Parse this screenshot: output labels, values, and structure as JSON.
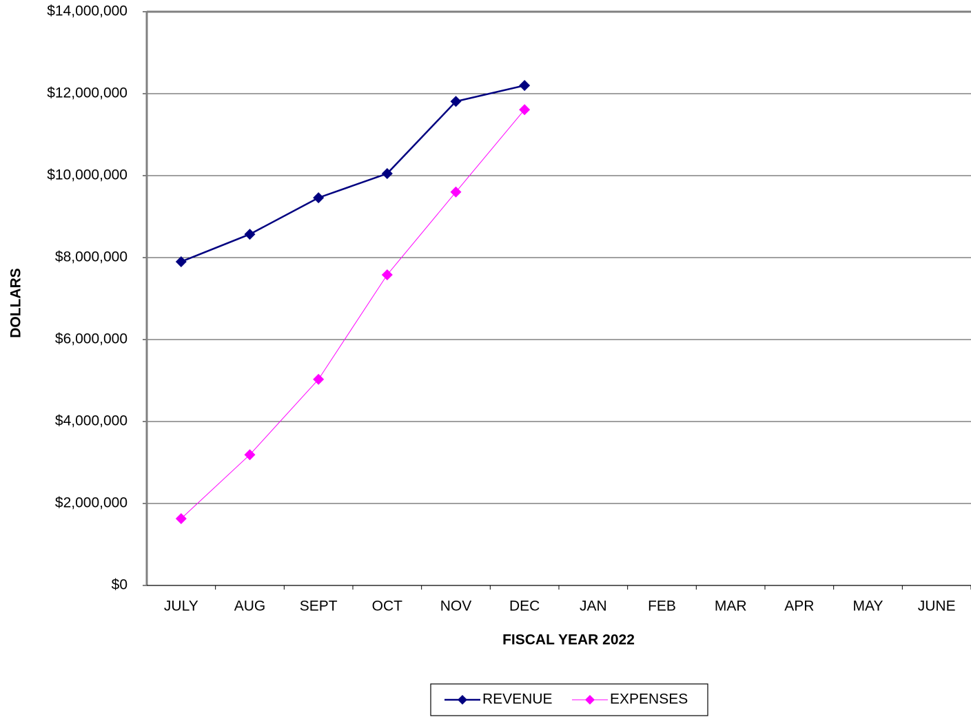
{
  "chart_data": {
    "type": "line",
    "x_label": "FISCAL YEAR 2022",
    "y_label": "DOLLARS",
    "categories": [
      "JULY",
      "AUG",
      "SEPT",
      "OCT",
      "NOV",
      "DEC",
      "JAN",
      "FEB",
      "MAR",
      "APR",
      "MAY",
      "JUNE"
    ],
    "series": [
      {
        "name": "REVENUE",
        "color": "#000080",
        "values": [
          7900000,
          8570000,
          9460000,
          10050000,
          11810000,
          12200000,
          null,
          null,
          null,
          null,
          null,
          null
        ]
      },
      {
        "name": "EXPENSES",
        "color": "#ff00ff",
        "values": [
          1630000,
          3190000,
          5030000,
          7580000,
          9600000,
          11610000,
          null,
          null,
          null,
          null,
          null,
          null
        ]
      }
    ],
    "ylim": [
      0,
      14000000
    ],
    "yticks": [
      {
        "value": 0,
        "label": "$0"
      },
      {
        "value": 2000000,
        "label": "$2,000,000"
      },
      {
        "value": 4000000,
        "label": "$4,000,000"
      },
      {
        "value": 6000000,
        "label": "$6,000,000"
      },
      {
        "value": 8000000,
        "label": "$8,000,000"
      },
      {
        "value": 10000000,
        "label": "$10,000,000"
      },
      {
        "value": 12000000,
        "label": "$12,000,000"
      },
      {
        "value": 14000000,
        "label": "$14,000,000"
      }
    ],
    "grid": true,
    "legend": "bottom"
  }
}
